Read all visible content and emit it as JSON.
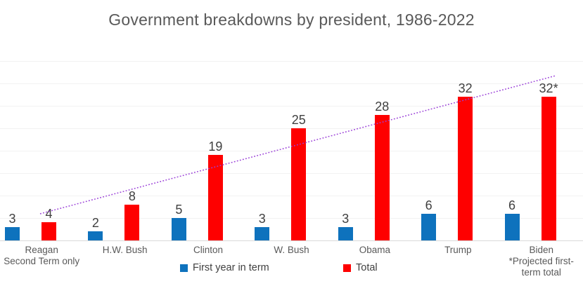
{
  "chart_data": {
    "type": "bar",
    "title": "Government breakdowns by president, 1986-2022",
    "categories": [
      "Reagan",
      "H.W. Bush",
      "Clinton",
      "W. Bush",
      "Obama",
      "Trump",
      "Biden"
    ],
    "category_notes": [
      "Second Term only",
      "",
      "",
      "",
      "",
      "",
      "*Projected first-\nterm total"
    ],
    "series": [
      {
        "name": "First year in term",
        "color": "#0e72bd",
        "values": [
          3,
          2,
          5,
          3,
          3,
          6,
          6
        ],
        "labels": [
          "3",
          "2",
          "5",
          "3",
          "3",
          "6",
          "6"
        ]
      },
      {
        "name": "Total",
        "color": "#fe0000",
        "values": [
          4,
          8,
          19,
          25,
          28,
          32,
          32
        ],
        "labels": [
          "4",
          "8",
          "19",
          "25",
          "28",
          "32",
          "32*"
        ]
      }
    ],
    "xlabel": "",
    "ylabel": "",
    "ylim": [
      0,
      40
    ],
    "gridline_step": 5,
    "grid": "horizontal-faint",
    "y_tick_labels_visible": false,
    "legend_position": "bottom",
    "trendline": {
      "applies_to": "Total",
      "style": "dotted-linear",
      "color": "#9a3fd8",
      "approx_start_value": 6,
      "approx_end_value": 37
    }
  }
}
